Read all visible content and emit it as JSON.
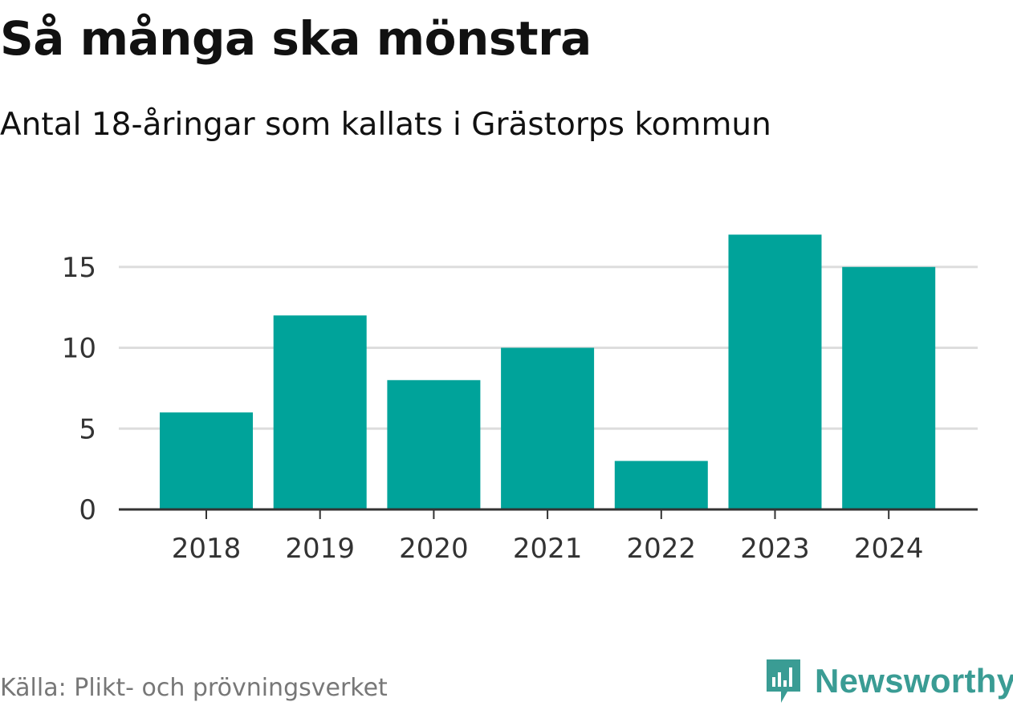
{
  "title": "Så många ska mönstra",
  "subtitle": "Antal 18-åringar som kallats i Grästorps kommun",
  "source": "Källa: Plikt- och prövningsverket",
  "brand": {
    "name": "Newsworthy",
    "icon": "newsworthy-logo-icon",
    "color": "#3a9c94"
  },
  "colors": {
    "bar": "#00a39a",
    "grid": "#dddddd",
    "axis": "#333333"
  },
  "chart_data": {
    "type": "bar",
    "title": "Så många ska mönstra",
    "subtitle": "Antal 18-åringar som kallats i Grästorps kommun",
    "categories": [
      "2018",
      "2019",
      "2020",
      "2021",
      "2022",
      "2023",
      "2024"
    ],
    "values": [
      6,
      12,
      8,
      10,
      3,
      17,
      15
    ],
    "xlabel": "",
    "ylabel": "",
    "ylim": [
      0,
      17
    ],
    "yticks": [
      0,
      5,
      10,
      15
    ],
    "grid": true,
    "legend": "none"
  }
}
